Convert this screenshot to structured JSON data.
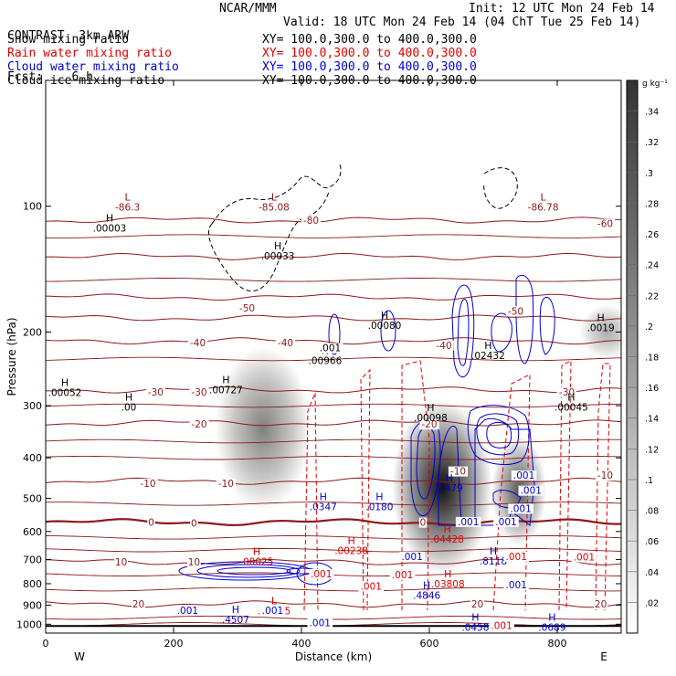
{
  "header": {
    "left": [
      "CONTRAST  3km ARW",
      "Fcst:    6 h"
    ],
    "center": "NCAR/MMM",
    "init": "Init: 12 UTC Mon 24 Feb 14",
    "valid": "Valid: 18 UTC Mon 24 Feb 14 (04 ChT Tue 25 Feb 14)"
  },
  "legend": [
    {
      "label": "Snow mixing ratio",
      "xy": "XY= 100.0,300.0 to 400.0,300.0",
      "color": "#000000"
    },
    {
      "label": "Rain water mixing ratio",
      "xy": "XY= 100.0,300.0 to 400.0,300.0",
      "color": "#e00000"
    },
    {
      "label": "Cloud water mixing ratio",
      "xy": "XY= 100.0,300.0 to 400.0,300.0",
      "color": "#0000d0"
    },
    {
      "label": "Cloud ice mixing ratio",
      "xy": "XY= 100.0,300.0 to 400.0,300.0",
      "color": "#000000"
    }
  ],
  "colors": {
    "temperature": "#8b1a1a",
    "rain": "#e00000",
    "cloud_water": "#0000d0",
    "cloud_ice": "#000000"
  },
  "chart_data": {
    "type": "contour",
    "xlabel": "Distance (km)",
    "ylabel": "Pressure (hPa)",
    "xlim": [
      0,
      900
    ],
    "ylim": [
      1050,
      50
    ],
    "x_ticks": [
      0,
      200,
      400,
      600,
      800
    ],
    "y_ticks": [
      100,
      200,
      300,
      400,
      500,
      600,
      700,
      800,
      900,
      1000
    ],
    "y_scale": "log",
    "west_label": "W",
    "east_label": "E",
    "colorbar": {
      "unit": "g kg⁻¹",
      "ticks": [
        ".02",
        ".04",
        ".06",
        ".08",
        ".1",
        ".12",
        ".14",
        ".16",
        ".18",
        ".2",
        ".22",
        ".24",
        ".26",
        ".28",
        ".3",
        ".32",
        ".34"
      ],
      "min": 0,
      "max": 0.36
    },
    "temperature_contours": [
      {
        "t": -80,
        "p": 108
      },
      {
        "t": -70,
        "p": 132
      },
      {
        "t": -60,
        "p": 165
      },
      {
        "t": -50,
        "p": 185
      },
      {
        "t": -40,
        "p": 210
      },
      {
        "t": -30,
        "p": 275
      },
      {
        "t": -20,
        "p": 330
      },
      {
        "t": -10,
        "p": 455
      },
      {
        "t": 0,
        "p": 570
      },
      {
        "t": 10,
        "p": 710
      },
      {
        "t": 20,
        "p": 895
      }
    ],
    "temperature_labels": [
      {
        "x": 415,
        "p": 108,
        "text": "-80"
      },
      {
        "x": 875,
        "p": 110,
        "text": "-60"
      },
      {
        "x": 315,
        "p": 175,
        "text": "-50"
      },
      {
        "x": 735,
        "p": 178,
        "text": "-50"
      },
      {
        "x": 238,
        "p": 212,
        "text": "-40"
      },
      {
        "x": 375,
        "p": 212,
        "text": "-40"
      },
      {
        "x": 623,
        "p": 215,
        "text": "-40"
      },
      {
        "x": 172,
        "p": 278,
        "text": "-30"
      },
      {
        "x": 240,
        "p": 278,
        "text": "-30"
      },
      {
        "x": 815,
        "p": 278,
        "text": "-30"
      },
      {
        "x": 240,
        "p": 332,
        "text": "-20"
      },
      {
        "x": 600,
        "p": 332,
        "text": "-20"
      },
      {
        "x": 160,
        "p": 460,
        "text": "-10"
      },
      {
        "x": 282,
        "p": 460,
        "text": "-10"
      },
      {
        "x": 645,
        "p": 430,
        "text": "-10"
      },
      {
        "x": 875,
        "p": 440,
        "text": "-10"
      },
      {
        "x": 165,
        "p": 570,
        "text": "0"
      },
      {
        "x": 232,
        "p": 573,
        "text": "0"
      },
      {
        "x": 590,
        "p": 570,
        "text": "0"
      },
      {
        "x": 118,
        "p": 710,
        "text": "10"
      },
      {
        "x": 232,
        "p": 710,
        "text": "10"
      },
      {
        "x": 145,
        "p": 893,
        "text": "20"
      },
      {
        "x": 675,
        "p": 893,
        "text": "20"
      },
      {
        "x": 868,
        "p": 893,
        "text": "20"
      }
    ],
    "highs_lows": [
      {
        "kind": "L",
        "x": 128,
        "p": 98,
        "value": "-86.3",
        "color": "#8b1a1a"
      },
      {
        "kind": "L",
        "x": 357,
        "p": 98,
        "value": "-85.08",
        "color": "#8b1a1a"
      },
      {
        "kind": "L",
        "x": 778,
        "p": 98,
        "value": "-86.78",
        "color": "#8b1a1a"
      },
      {
        "kind": "H",
        "x": 100,
        "p": 110,
        "value": ".00003",
        "color": "#000000"
      },
      {
        "kind": "H",
        "x": 363,
        "p": 128,
        "value": ".00033",
        "color": "#000000"
      },
      {
        "kind": "H",
        "x": 530,
        "p": 188,
        "value": ".00080",
        "color": "#000000"
      },
      {
        "kind": "H",
        "x": 868,
        "p": 190,
        "value": ".0019",
        "color": "#000000"
      },
      {
        "kind": "H",
        "x": 437,
        "p": 228,
        "value": ".00966",
        "color": "#000000"
      },
      {
        "kind": "H",
        "x": 692,
        "p": 222,
        "value": ".02432",
        "color": "#000000"
      },
      {
        "kind": "H",
        "x": 30,
        "p": 272,
        "value": ".00052",
        "color": "#000000"
      },
      {
        "kind": "H",
        "x": 282,
        "p": 268,
        "value": ".00727",
        "color": "#000000"
      },
      {
        "kind": "H",
        "x": 130,
        "p": 295,
        "value": ".00",
        "color": "#000000"
      },
      {
        "kind": "H",
        "x": 602,
        "p": 312,
        "value": ".00098",
        "color": "#000000"
      },
      {
        "kind": "H",
        "x": 822,
        "p": 295,
        "value": ".00045",
        "color": "#000000"
      },
      {
        "kind": "H",
        "x": 631,
        "p": 460,
        "value": ".1479",
        "color": "#0000d0"
      },
      {
        "kind": "H",
        "x": 434,
        "p": 510,
        "value": ".0347",
        "color": "#0000d0"
      },
      {
        "kind": "H",
        "x": 522,
        "p": 510,
        "value": ".0180",
        "color": "#0000d0"
      },
      {
        "kind": "H",
        "x": 628,
        "p": 610,
        "value": ".04428",
        "color": "#e00000"
      },
      {
        "kind": "H",
        "x": 478,
        "p": 650,
        "value": ".00238",
        "color": "#e00000"
      },
      {
        "kind": "H",
        "x": 330,
        "p": 690,
        "value": ".00025",
        "color": "#e00000"
      },
      {
        "kind": "H",
        "x": 700,
        "p": 688,
        "value": ".8118",
        "color": "#0000d0"
      },
      {
        "kind": "H",
        "x": 629,
        "p": 780,
        "value": ".03808",
        "color": "#e00000"
      },
      {
        "kind": "H",
        "x": 596,
        "p": 830,
        "value": ".4846",
        "color": "#0000d0"
      },
      {
        "kind": "L",
        "x": 357,
        "p": 905,
        "value": ".00005",
        "color": "#e00000"
      },
      {
        "kind": "H",
        "x": 297,
        "p": 950,
        "value": ".4507",
        "color": "#0000d0"
      },
      {
        "kind": "H",
        "x": 672,
        "p": 990,
        "value": ".0458",
        "color": "#0000d0"
      },
      {
        "kind": "H",
        "x": 792,
        "p": 990,
        "value": ".0689",
        "color": "#0000d0"
      }
    ],
    "value_labels": [
      {
        "x": 222,
        "p": 925,
        "text": ".001",
        "color": "#0000d0"
      },
      {
        "x": 355,
        "p": 925,
        "text": ".001",
        "color": "#0000d0"
      },
      {
        "x": 429,
        "p": 990,
        "text": ".001",
        "color": "#0000d0"
      },
      {
        "x": 431,
        "p": 757,
        "text": ".001",
        "color": "#e00000"
      },
      {
        "x": 509,
        "p": 810,
        "text": ".001",
        "color": "#e00000"
      },
      {
        "x": 558,
        "p": 760,
        "text": ".001",
        "color": "#e00000"
      },
      {
        "x": 573,
        "p": 688,
        "text": ".001",
        "color": "#0000d0"
      },
      {
        "x": 661,
        "p": 568,
        "text": ".001",
        "color": "#0000d0"
      },
      {
        "x": 720,
        "p": 568,
        "text": ".001",
        "color": "#0000d0"
      },
      {
        "x": 748,
        "p": 440,
        "text": ".001",
        "color": "#0000d0"
      },
      {
        "x": 759,
        "p": 478,
        "text": ".001",
        "color": "#0000d0"
      },
      {
        "x": 743,
        "p": 528,
        "text": ".001",
        "color": "#0000d0"
      },
      {
        "x": 736,
        "p": 805,
        "text": ".001",
        "color": "#0000d0"
      },
      {
        "x": 842,
        "p": 690,
        "text": ".001",
        "color": "#e00000"
      },
      {
        "x": 713,
        "p": 1005,
        "text": ".001",
        "color": "#e00000"
      },
      {
        "x": 736,
        "p": 688,
        "text": ".001",
        "color": "#e00000"
      },
      {
        "x": 445,
        "p": 218,
        "text": ".001",
        "color": "#000000"
      }
    ],
    "snow_shading": [
      {
        "x": 340,
        "p": 340,
        "w": 105,
        "h": 180,
        "peak": 0.18
      },
      {
        "x": 620,
        "p": 470,
        "w": 110,
        "h": 190,
        "peak": 0.34
      },
      {
        "x": 740,
        "p": 480,
        "w": 60,
        "h": 120,
        "peak": 0.24
      },
      {
        "x": 878,
        "p": 200,
        "w": 60,
        "h": 60,
        "peak": 0.12
      }
    ]
  }
}
